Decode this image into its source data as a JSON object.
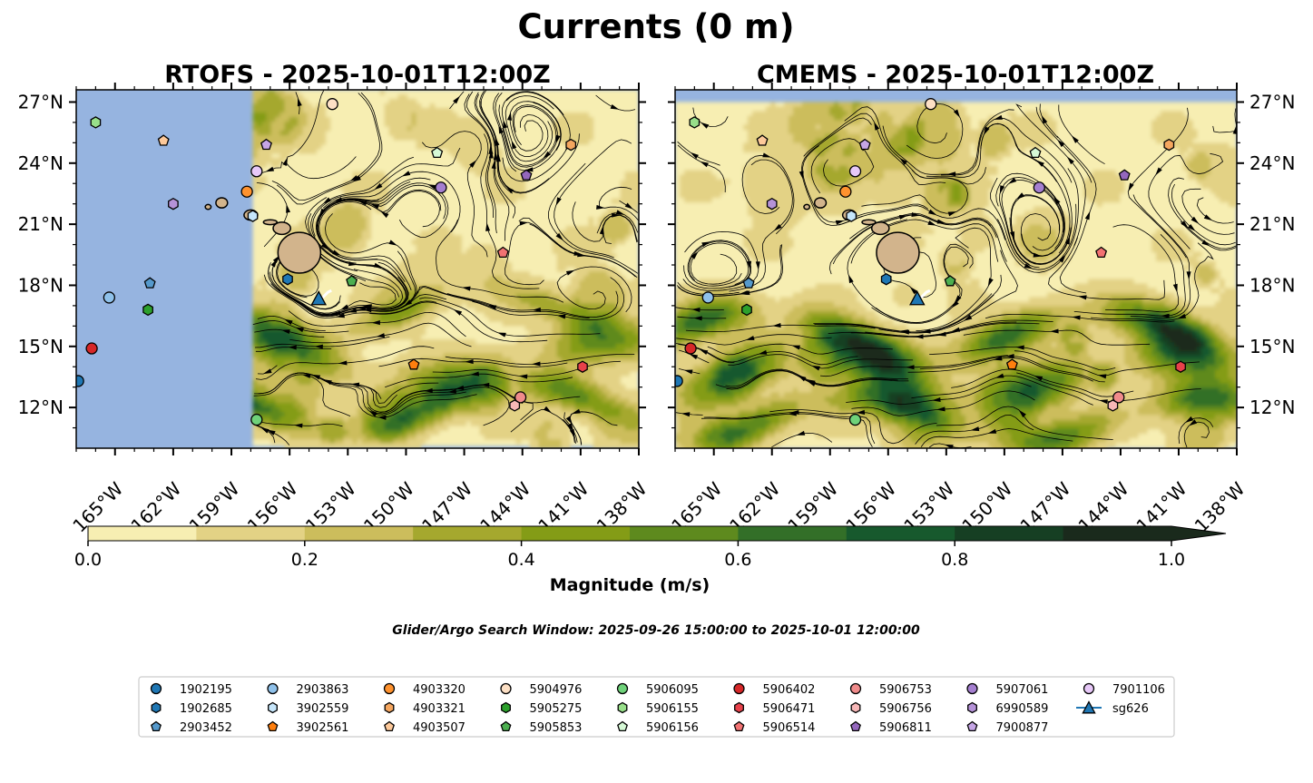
{
  "figure": {
    "suptitle": "Currents (0 m)",
    "search_window": "Glider/Argo Search Window: 2025-09-26 15:00:00 to 2025-10-01 12:00:00",
    "colors": {
      "land_mask": "#96b4e0",
      "island": "#d2b48c",
      "streamline": "#000000",
      "glider_track": "#ffffff"
    }
  },
  "chart_data": [
    {
      "type": "heatmap",
      "title": "RTOFS - 2025-10-01T12:00Z",
      "xlim": [
        -167,
        -138
      ],
      "ylim": [
        10,
        27.6
      ],
      "data_extent_x": [
        -157.9,
        -138
      ],
      "data_extent_y": [
        10.1,
        27.6
      ],
      "xticks": [
        -165,
        -162,
        -159,
        -156,
        -153,
        -150,
        -147,
        -144,
        -141,
        -138
      ],
      "xtick_labels": [
        "165°W",
        "162°W",
        "159°W",
        "156°W",
        "153°W",
        "150°W",
        "147°W",
        "144°W",
        "141°W",
        "138°W"
      ],
      "yticks": [
        12,
        15,
        18,
        21,
        24,
        27
      ],
      "ytick_labels": [
        "12°N",
        "15°N",
        "18°N",
        "21°N",
        "24°N",
        "27°N"
      ],
      "ytick_side": "left"
    },
    {
      "type": "heatmap",
      "title": "CMEMS - 2025-10-01T12:00Z",
      "xlim": [
        -167,
        -138
      ],
      "ylim": [
        10,
        27.6
      ],
      "data_extent_x": [
        -167,
        -138
      ],
      "data_extent_y": [
        10,
        27
      ],
      "xticks": [
        -165,
        -162,
        -159,
        -156,
        -153,
        -150,
        -147,
        -144,
        -141,
        -138
      ],
      "xtick_labels": [
        "165°W",
        "162°W",
        "159°W",
        "156°W",
        "153°W",
        "150°W",
        "147°W",
        "144°W",
        "141°W",
        "138°W"
      ],
      "yticks": [
        12,
        15,
        18,
        21,
        24,
        27
      ],
      "ytick_labels": [
        "12°N",
        "15°N",
        "18°N",
        "21°N",
        "24°N",
        "27°N"
      ],
      "ytick_side": "right"
    }
  ],
  "colorbar": {
    "label": "Magnitude (m/s)",
    "range": [
      0,
      1.0
    ],
    "extend": "max",
    "ticks": [
      0.0,
      0.2,
      0.4,
      0.6,
      0.8,
      1.0
    ],
    "tick_labels": [
      "0.0",
      "0.2",
      "0.4",
      "0.6",
      "0.8",
      "1.0"
    ],
    "colors": [
      "#f7eeb2",
      "#e3d285",
      "#ccbd5c",
      "#a5a82e",
      "#849c16",
      "#5e8a1e",
      "#336f28",
      "#17592d",
      "#163f23",
      "#1a2a1c",
      "#1a2a1c"
    ]
  },
  "floats": [
    {
      "id": "1902195",
      "color": "#1f77b4",
      "marker": "circle",
      "lon": -166.9,
      "lat": 13.3
    },
    {
      "id": "1902685",
      "color": "#1f77b4",
      "marker": "hexagon",
      "lon": -156.1,
      "lat": 18.3
    },
    {
      "id": "2903452",
      "color": "#5599cc",
      "marker": "pentagon",
      "lon": -163.2,
      "lat": 18.1
    },
    {
      "id": "2903863",
      "color": "#8fc1ea",
      "marker": "circle",
      "lon": -165.3,
      "lat": 17.4
    },
    {
      "id": "3902559",
      "color": "#c6e6fb",
      "marker": "hexagon",
      "lon": -157.9,
      "lat": 21.4
    },
    {
      "id": "3902561",
      "color": "#ff7f0e",
      "marker": "pentagon",
      "lon": -149.6,
      "lat": 14.1
    },
    {
      "id": "4903320",
      "color": "#ff922e",
      "marker": "circle",
      "lon": -158.2,
      "lat": 22.6
    },
    {
      "id": "4903321",
      "color": "#f5a65f",
      "marker": "hexagon",
      "lon": -141.5,
      "lat": 24.9
    },
    {
      "id": "4903507",
      "color": "#fdc99a",
      "marker": "pentagon",
      "lon": -162.5,
      "lat": 25.1
    },
    {
      "id": "5904976",
      "color": "#fde0c5",
      "marker": "circle",
      "lon": -153.8,
      "lat": 26.9
    },
    {
      "id": "5905275",
      "color": "#2ca02c",
      "marker": "hexagon",
      "lon": -163.3,
      "lat": 16.8
    },
    {
      "id": "5905853",
      "color": "#4caf50",
      "marker": "pentagon",
      "lon": -152.8,
      "lat": 18.2
    },
    {
      "id": "5906095",
      "color": "#6fd27a",
      "marker": "circle",
      "lon": -157.7,
      "lat": 11.4
    },
    {
      "id": "5906155",
      "color": "#98df8a",
      "marker": "hexagon",
      "lon": -166.0,
      "lat": 26.0
    },
    {
      "id": "5906156",
      "color": "#d6f9d6",
      "marker": "pentagon",
      "lon": -148.4,
      "lat": 24.5
    },
    {
      "id": "5906402",
      "color": "#d62728",
      "marker": "circle",
      "lon": -166.2,
      "lat": 14.9
    },
    {
      "id": "5906471",
      "color": "#e8414a",
      "marker": "hexagon",
      "lon": -140.9,
      "lat": 14.0
    },
    {
      "id": "5906514",
      "color": "#f27272",
      "marker": "pentagon",
      "lon": -145.0,
      "lat": 19.6
    },
    {
      "id": "5906753",
      "color": "#f08b8b",
      "marker": "circle",
      "lon": -144.1,
      "lat": 12.5
    },
    {
      "id": "5906756",
      "color": "#f7b7b7",
      "marker": "hexagon",
      "lon": -144.4,
      "lat": 12.1
    },
    {
      "id": "5906811",
      "color": "#9467bd",
      "marker": "pentagon",
      "lon": -143.8,
      "lat": 23.4
    },
    {
      "id": "5907061",
      "color": "#a57fd0",
      "marker": "circle",
      "lon": -148.2,
      "lat": 22.8
    },
    {
      "id": "6990589",
      "color": "#b592d8",
      "marker": "hexagon",
      "lon": -162.0,
      "lat": 22.0
    },
    {
      "id": "7900877",
      "color": "#c6a6e6",
      "marker": "pentagon",
      "lon": -157.2,
      "lat": 24.9
    },
    {
      "id": "7901106",
      "color": "#e7c8f8",
      "marker": "circle",
      "lon": -157.7,
      "lat": 23.6
    }
  ],
  "glider": {
    "id": "sg626",
    "color": "#1f77b4",
    "marker": "triangle",
    "lon": -154.5,
    "lat": 17.3
  },
  "legend_columns": [
    [
      "1902195",
      "1902685",
      "2903452"
    ],
    [
      "2903863",
      "3902559",
      "3902561"
    ],
    [
      "4903320",
      "4903321",
      "4903507"
    ],
    [
      "5904976",
      "5905275",
      "5905853"
    ],
    [
      "5906095",
      "5906155",
      "5906156"
    ],
    [
      "5906402",
      "5906471",
      "5906514"
    ],
    [
      "5906753",
      "5906756",
      "5906811"
    ],
    [
      "5907061",
      "6990589",
      "7900877"
    ],
    [
      "7901106",
      "sg626"
    ]
  ]
}
